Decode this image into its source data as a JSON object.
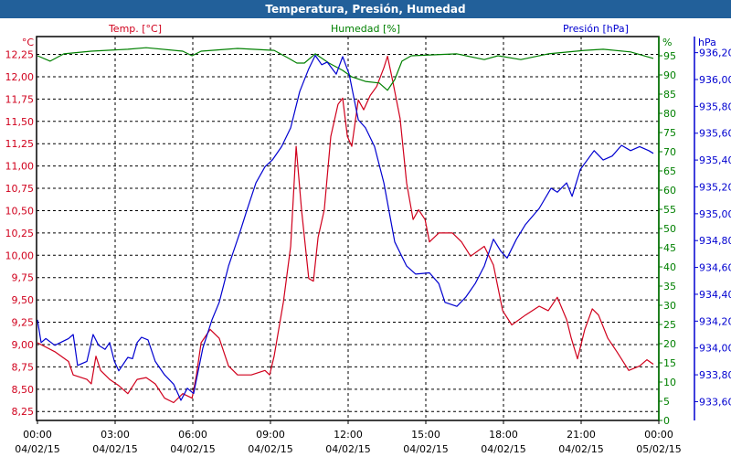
{
  "chart_data": {
    "type": "line",
    "title": "Temperatura, Presión, Humedad",
    "grid": true,
    "x_ticks": [
      {
        "h": 0,
        "time": "00:00",
        "date": "04/02/15"
      },
      {
        "h": 3,
        "time": "03:00",
        "date": "04/02/15"
      },
      {
        "h": 6,
        "time": "06:00",
        "date": "04/02/15"
      },
      {
        "h": 9,
        "time": "09:00",
        "date": "04/02/15"
      },
      {
        "h": 12,
        "time": "12:00",
        "date": "04/02/15"
      },
      {
        "h": 15,
        "time": "15:00",
        "date": "04/02/15"
      },
      {
        "h": 18,
        "time": "18:00",
        "date": "04/02/15"
      },
      {
        "h": 21,
        "time": "21:00",
        "date": "04/02/15"
      },
      {
        "h": 24,
        "time": "00:00",
        "date": "05/02/15"
      }
    ],
    "xlim_hours": [
      0,
      24
    ],
    "axes": {
      "temp": {
        "label": "Temp. [°C]",
        "unit": "°C",
        "color": "#d0001c",
        "ylim": [
          8.15,
          12.45
        ],
        "ticks": [
          "8,25",
          "8,50",
          "8,75",
          "9,00",
          "9,25",
          "9,50",
          "9,75",
          "10,00",
          "10,25",
          "10,50",
          "10,75",
          "11,00",
          "11,25",
          "11,50",
          "11,75",
          "12,00",
          "12,25"
        ],
        "tick_start": 8.25,
        "tick_step": 0.25
      },
      "hum": {
        "label": "Humedad [%]",
        "unit": "%",
        "color": "#008000",
        "ylim": [
          0,
          100
        ],
        "ticks": [
          "0",
          "5",
          "10",
          "15",
          "20",
          "25",
          "30",
          "35",
          "40",
          "45",
          "50",
          "55",
          "60",
          "65",
          "70",
          "75",
          "80",
          "85",
          "90",
          "95"
        ],
        "tick_start": 0,
        "tick_step": 5
      },
      "pres": {
        "label": "Presión [hPa]",
        "unit": "hPa",
        "color": "#0000d0",
        "ylim": [
          933.46,
          936.32
        ],
        "ticks": [
          "933,60",
          "933,80",
          "934,00",
          "934,20",
          "934,40",
          "934,60",
          "934,80",
          "935,00",
          "935,20",
          "935,40",
          "935,60",
          "935,80",
          "936,00",
          "936,20"
        ],
        "tick_start": 933.6,
        "tick_step": 0.2
      }
    },
    "series": [
      {
        "name": "Temp. [°C]",
        "axis": "temp",
        "color": "#d0001c",
        "points": [
          [
            0,
            9.02
          ],
          [
            0.67,
            8.92
          ],
          [
            1.2,
            8.81
          ],
          [
            1.38,
            8.66
          ],
          [
            1.91,
            8.61
          ],
          [
            2.08,
            8.56
          ],
          [
            2.26,
            8.87
          ],
          [
            2.44,
            8.71
          ],
          [
            2.79,
            8.61
          ],
          [
            3.14,
            8.54
          ],
          [
            3.49,
            8.45
          ],
          [
            3.85,
            8.61
          ],
          [
            4.2,
            8.63
          ],
          [
            4.55,
            8.56
          ],
          [
            4.91,
            8.4
          ],
          [
            5.26,
            8.35
          ],
          [
            5.61,
            8.45
          ],
          [
            5.97,
            8.4
          ],
          [
            6.14,
            8.66
          ],
          [
            6.32,
            9.02
          ],
          [
            6.67,
            9.17
          ],
          [
            7.02,
            9.07
          ],
          [
            7.38,
            8.76
          ],
          [
            7.73,
            8.66
          ],
          [
            8.26,
            8.66
          ],
          [
            8.79,
            8.71
          ],
          [
            8.97,
            8.66
          ],
          [
            9.14,
            8.87
          ],
          [
            9.5,
            9.48
          ],
          [
            9.78,
            10.1
          ],
          [
            9.99,
            11.22
          ],
          [
            10.2,
            10.51
          ],
          [
            10.48,
            9.74
          ],
          [
            10.66,
            9.71
          ],
          [
            10.84,
            10.2
          ],
          [
            11.08,
            10.51
          ],
          [
            11.33,
            11.33
          ],
          [
            11.61,
            11.69
          ],
          [
            11.79,
            11.76
          ],
          [
            11.97,
            11.33
          ],
          [
            12.14,
            11.22
          ],
          [
            12.39,
            11.74
          ],
          [
            12.6,
            11.63
          ],
          [
            12.85,
            11.79
          ],
          [
            13.1,
            11.89
          ],
          [
            13.38,
            12.1
          ],
          [
            13.52,
            12.23
          ],
          [
            13.73,
            11.94
          ],
          [
            14.01,
            11.53
          ],
          [
            14.26,
            10.81
          ],
          [
            14.51,
            10.4
          ],
          [
            14.72,
            10.51
          ],
          [
            14.97,
            10.4
          ],
          [
            15.14,
            10.15
          ],
          [
            15.5,
            10.25
          ],
          [
            16.03,
            10.25
          ],
          [
            16.38,
            10.15
          ],
          [
            16.73,
            9.99
          ],
          [
            17.26,
            10.1
          ],
          [
            17.61,
            9.89
          ],
          [
            17.97,
            9.38
          ],
          [
            18.32,
            9.22
          ],
          [
            18.85,
            9.33
          ],
          [
            19.38,
            9.43
          ],
          [
            19.73,
            9.38
          ],
          [
            20.08,
            9.53
          ],
          [
            20.44,
            9.28
          ],
          [
            20.62,
            9.07
          ],
          [
            20.86,
            8.84
          ],
          [
            21.14,
            9.17
          ],
          [
            21.43,
            9.4
          ],
          [
            21.67,
            9.33
          ],
          [
            22.03,
            9.07
          ],
          [
            22.38,
            8.92
          ],
          [
            22.84,
            8.71
          ],
          [
            23.26,
            8.76
          ],
          [
            23.54,
            8.83
          ],
          [
            23.79,
            8.78
          ]
        ]
      },
      {
        "name": "Humedad [%]",
        "axis": "hum",
        "color": "#008000",
        "points": [
          [
            0,
            95
          ],
          [
            0.49,
            93.6
          ],
          [
            1.02,
            95.5
          ],
          [
            2.08,
            96.2
          ],
          [
            3.49,
            96.7
          ],
          [
            4.2,
            97.1
          ],
          [
            5.61,
            96.2
          ],
          [
            5.97,
            95
          ],
          [
            6.32,
            96.2
          ],
          [
            7.73,
            96.9
          ],
          [
            9.14,
            96.4
          ],
          [
            9.71,
            94.3
          ],
          [
            10.02,
            93.1
          ],
          [
            10.31,
            93.1
          ],
          [
            10.73,
            95.5
          ],
          [
            11.26,
            93.1
          ],
          [
            11.79,
            91.2
          ],
          [
            12.14,
            89.5
          ],
          [
            12.67,
            88.3
          ],
          [
            13.2,
            87.9
          ],
          [
            13.52,
            86
          ],
          [
            13.8,
            88.8
          ],
          [
            14.08,
            93.6
          ],
          [
            14.44,
            95
          ],
          [
            16.2,
            95.5
          ],
          [
            17.26,
            94
          ],
          [
            17.79,
            95
          ],
          [
            18.67,
            94
          ],
          [
            19.73,
            95.5
          ],
          [
            21.14,
            96.4
          ],
          [
            21.85,
            96.7
          ],
          [
            22.91,
            96
          ],
          [
            23.79,
            94.3
          ]
        ]
      },
      {
        "name": "Presión [hPa]",
        "axis": "pres",
        "color": "#0000d0",
        "points": [
          [
            0,
            934.21
          ],
          [
            0.14,
            934.04
          ],
          [
            0.32,
            934.07
          ],
          [
            0.67,
            934.02
          ],
          [
            1.2,
            934.07
          ],
          [
            1.38,
            934.1
          ],
          [
            1.55,
            933.87
          ],
          [
            1.91,
            933.9
          ],
          [
            2.15,
            934.1
          ],
          [
            2.36,
            934.02
          ],
          [
            2.61,
            933.99
          ],
          [
            2.79,
            934.04
          ],
          [
            2.97,
            933.9
          ],
          [
            3.14,
            933.83
          ],
          [
            3.49,
            933.93
          ],
          [
            3.67,
            933.92
          ],
          [
            3.85,
            934.04
          ],
          [
            4.02,
            934.08
          ],
          [
            4.27,
            934.06
          ],
          [
            4.55,
            933.9
          ],
          [
            4.91,
            933.8
          ],
          [
            5.26,
            933.73
          ],
          [
            5.54,
            933.61
          ],
          [
            5.79,
            933.7
          ],
          [
            6.03,
            933.66
          ],
          [
            6.39,
            934.0
          ],
          [
            6.74,
            934.21
          ],
          [
            7.02,
            934.34
          ],
          [
            7.38,
            934.61
          ],
          [
            7.8,
            934.85
          ],
          [
            8.08,
            935.02
          ],
          [
            8.44,
            935.23
          ],
          [
            8.79,
            935.35
          ],
          [
            9.07,
            935.4
          ],
          [
            9.43,
            935.5
          ],
          [
            9.78,
            935.64
          ],
          [
            10.13,
            935.91
          ],
          [
            10.48,
            936.08
          ],
          [
            10.73,
            936.18
          ],
          [
            10.98,
            936.11
          ],
          [
            11.19,
            936.13
          ],
          [
            11.54,
            936.04
          ],
          [
            11.79,
            936.17
          ],
          [
            12.04,
            936.04
          ],
          [
            12.39,
            935.7
          ],
          [
            12.67,
            935.64
          ],
          [
            13.02,
            935.5
          ],
          [
            13.38,
            935.23
          ],
          [
            13.8,
            934.79
          ],
          [
            14.26,
            934.61
          ],
          [
            14.61,
            934.55
          ],
          [
            15.14,
            934.56
          ],
          [
            15.5,
            934.48
          ],
          [
            15.74,
            934.34
          ],
          [
            16.2,
            934.31
          ],
          [
            16.55,
            934.38
          ],
          [
            16.91,
            934.48
          ],
          [
            17.26,
            934.61
          ],
          [
            17.61,
            934.81
          ],
          [
            17.9,
            934.72
          ],
          [
            18.14,
            934.67
          ],
          [
            18.5,
            934.81
          ],
          [
            18.85,
            934.92
          ],
          [
            19.38,
            935.04
          ],
          [
            19.84,
            935.19
          ],
          [
            20.08,
            935.16
          ],
          [
            20.44,
            935.23
          ],
          [
            20.65,
            935.13
          ],
          [
            20.97,
            935.33
          ],
          [
            21.5,
            935.47
          ],
          [
            21.85,
            935.4
          ],
          [
            22.2,
            935.43
          ],
          [
            22.56,
            935.51
          ],
          [
            22.91,
            935.47
          ],
          [
            23.26,
            935.5
          ],
          [
            23.61,
            935.47
          ],
          [
            23.79,
            935.45
          ]
        ]
      }
    ]
  }
}
